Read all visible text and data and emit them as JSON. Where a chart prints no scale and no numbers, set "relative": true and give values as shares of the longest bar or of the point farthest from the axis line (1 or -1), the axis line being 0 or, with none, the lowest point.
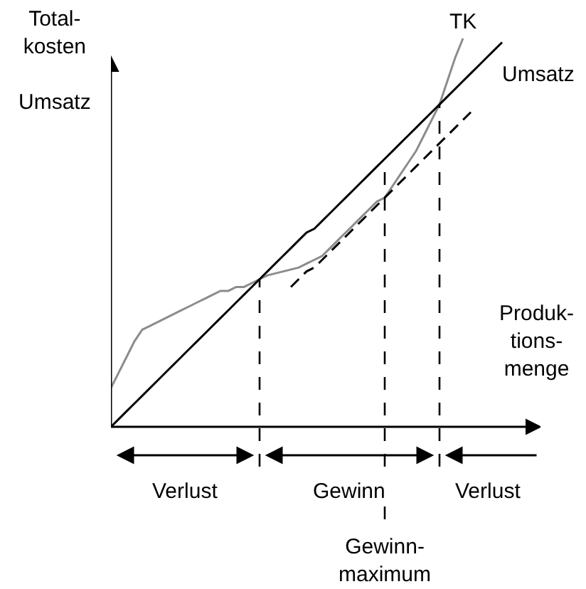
{
  "chart_data": {
    "type": "line",
    "relative": true,
    "xlabel": "Produk-\ntions-\nmenge",
    "ylabel": "Total-\nkosten\n\nUmsatz",
    "categories": [
      null,
      null,
      null,
      null,
      null,
      null,
      null,
      null,
      null,
      null,
      null,
      null,
      null,
      null,
      null,
      null,
      null,
      null,
      null,
      null,
      null,
      null,
      null,
      null,
      null,
      null,
      null,
      null,
      null,
      null,
      null,
      null,
      null,
      null,
      null,
      null,
      null,
      null,
      null,
      null,
      null,
      null,
      null,
      null,
      null,
      null,
      null,
      null,
      null,
      null,
      null
    ],
    "series": [
      {
        "name": "TK",
        "color": "#8c8c8c",
        "line_style": "solid",
        "values": [
          0.1,
          0.14,
          0.18,
          0.22,
          0.25,
          0.26,
          0.27,
          0.28,
          0.29,
          0.3,
          0.31,
          0.32,
          0.33,
          0.34,
          0.35,
          0.35,
          0.36,
          0.36,
          0.37,
          0.38,
          0.39,
          0.395,
          0.4,
          0.405,
          0.41,
          0.42,
          0.43,
          0.44,
          0.46,
          0.48,
          0.5,
          0.52,
          0.54,
          0.56,
          0.58,
          0.59,
          0.62,
          0.65,
          0.68,
          0.71,
          0.75,
          0.79,
          0.83,
          0.89,
          0.95,
          1.0,
          null,
          null,
          null,
          null,
          null
        ]
      },
      {
        "name": "Umsatz",
        "color": "#000000",
        "line_style": "solid",
        "values": [
          0,
          0.02,
          0.04,
          0.06,
          0.08,
          0.1,
          0.12,
          0.14,
          0.16,
          0.18,
          0.2,
          0.22,
          0.24,
          0.26,
          0.28,
          0.3,
          0.32,
          0.34,
          0.36,
          0.38,
          0.4,
          0.42,
          0.44,
          0.46,
          0.48,
          0.5,
          0.51,
          0.53,
          0.55,
          0.57,
          0.59,
          0.61,
          0.63,
          0.65,
          0.67,
          0.69,
          0.71,
          0.73,
          0.75,
          0.77,
          0.79,
          0.81,
          0.83,
          0.85,
          0.87,
          0.89,
          0.91,
          0.93,
          0.95,
          0.97,
          0.99
        ]
      },
      {
        "color": "#000000",
        "line_style": "dashed",
        "values": [
          null,
          null,
          null,
          null,
          null,
          null,
          null,
          null,
          null,
          null,
          null,
          null,
          null,
          null,
          null,
          null,
          null,
          null,
          null,
          null,
          null,
          null,
          null,
          0.36,
          0.38,
          0.4,
          0.41,
          0.43,
          0.45,
          0.47,
          0.49,
          0.51,
          0.53,
          0.55,
          0.57,
          0.59,
          0.61,
          0.63,
          0.65,
          0.67,
          0.69,
          0.71,
          0.73,
          0.75,
          0.77,
          0.79,
          0.81,
          null,
          null,
          null,
          null
        ]
      }
    ],
    "annotations": [
      "Verlust",
      "Gewinn",
      "Verlust",
      "Gewinn-\nmaximum"
    ]
  }
}
